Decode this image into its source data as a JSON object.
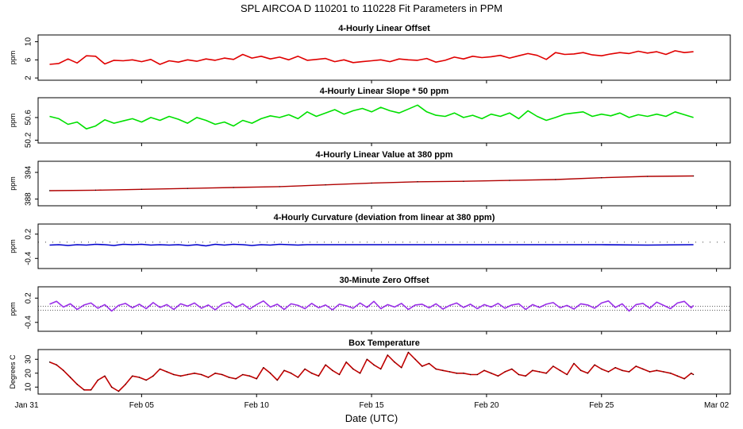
{
  "title": "SPL   AIRCOA D   110201 to 110228   Fit Parameters in PPM",
  "xlabel": "Date (UTC)",
  "x_axis": {
    "start_day": -0.5,
    "end_day": 29.6,
    "ticks": [
      {
        "label": "Jan 31",
        "day": -1
      },
      {
        "label": "Feb 05",
        "day": 4
      },
      {
        "label": "Feb 10",
        "day": 9
      },
      {
        "label": "Feb 15",
        "day": 14
      },
      {
        "label": "Feb 20",
        "day": 19
      },
      {
        "label": "Feb 25",
        "day": 24
      },
      {
        "label": "Mar 02",
        "day": 29
      }
    ]
  },
  "chart_data": [
    {
      "type": "line",
      "title": "4-Hourly Linear Offset",
      "ylabel": "ppm",
      "yticks": [
        "2",
        "6",
        "10"
      ],
      "ytick_values": [
        2,
        6,
        10
      ],
      "ylim": [
        1.5,
        11.5
      ],
      "color": "#e00000",
      "x": [
        0.0,
        0.4,
        0.8,
        1.2,
        1.6,
        2.0,
        2.4,
        2.8,
        3.2,
        3.6,
        4.0,
        4.4,
        4.8,
        5.2,
        5.6,
        6.0,
        6.4,
        6.8,
        7.2,
        7.6,
        8.0,
        8.4,
        8.8,
        9.2,
        9.6,
        10.0,
        10.4,
        10.8,
        11.2,
        11.6,
        12.0,
        12.4,
        12.8,
        13.2,
        13.6,
        14.0,
        14.4,
        14.8,
        15.2,
        15.6,
        16.0,
        16.4,
        16.8,
        17.2,
        17.6,
        18.0,
        18.4,
        18.8,
        19.2,
        19.6,
        20.0,
        20.4,
        20.8,
        21.2,
        21.6,
        22.0,
        22.4,
        22.8,
        23.2,
        23.6,
        24.0,
        24.4,
        24.8,
        25.2,
        25.6,
        26.0,
        26.4,
        26.8,
        27.2,
        27.6,
        28.0
      ],
      "y": [
        5.0,
        5.2,
        6.2,
        5.3,
        6.9,
        6.8,
        5.1,
        5.9,
        5.8,
        6.0,
        5.6,
        6.1,
        5.0,
        5.8,
        5.5,
        6.0,
        5.7,
        6.2,
        5.9,
        6.4,
        6.1,
        7.2,
        6.4,
        6.8,
        6.2,
        6.6,
        6.0,
        6.8,
        5.9,
        6.1,
        6.3,
        5.6,
        6.0,
        5.4,
        5.6,
        5.8,
        6.0,
        5.6,
        6.2,
        6.0,
        5.9,
        6.3,
        5.5,
        5.9,
        6.6,
        6.2,
        6.8,
        6.5,
        6.7,
        7.0,
        6.4,
        6.9,
        7.4,
        7.0,
        6.1,
        7.6,
        7.2,
        7.3,
        7.6,
        7.1,
        6.9,
        7.3,
        7.6,
        7.4,
        7.9,
        7.5,
        7.8,
        7.2,
        8.0,
        7.6,
        7.8
      ]
    },
    {
      "type": "line",
      "title": "4-Hourly Linear Slope * 50 ppm",
      "ylabel": "ppm",
      "yticks": [
        "50.2",
        "50.6"
      ],
      "ytick_values": [
        50.2,
        50.6
      ],
      "ylim": [
        50.15,
        50.95
      ],
      "color": "#00e000",
      "x": [
        0.0,
        0.4,
        0.8,
        1.2,
        1.6,
        2.0,
        2.4,
        2.8,
        3.2,
        3.6,
        4.0,
        4.4,
        4.8,
        5.2,
        5.6,
        6.0,
        6.4,
        6.8,
        7.2,
        7.6,
        8.0,
        8.4,
        8.8,
        9.2,
        9.6,
        10.0,
        10.4,
        10.8,
        11.2,
        11.6,
        12.0,
        12.4,
        12.8,
        13.2,
        13.6,
        14.0,
        14.4,
        14.8,
        15.2,
        15.6,
        16.0,
        16.4,
        16.8,
        17.2,
        17.6,
        18.0,
        18.4,
        18.8,
        19.2,
        19.6,
        20.0,
        20.4,
        20.8,
        21.2,
        21.6,
        22.0,
        22.4,
        22.8,
        23.2,
        23.6,
        24.0,
        24.4,
        24.8,
        25.2,
        25.6,
        26.0,
        26.4,
        26.8,
        27.2,
        27.6,
        28.0
      ],
      "y": [
        50.62,
        50.58,
        50.48,
        50.52,
        50.4,
        50.45,
        50.56,
        50.5,
        50.54,
        50.58,
        50.52,
        50.6,
        50.55,
        50.62,
        50.57,
        50.5,
        50.6,
        50.55,
        50.48,
        50.52,
        50.45,
        50.55,
        50.5,
        50.58,
        50.63,
        50.6,
        50.65,
        50.58,
        50.7,
        50.62,
        50.68,
        50.74,
        50.66,
        50.72,
        50.76,
        50.7,
        50.78,
        50.72,
        50.68,
        50.75,
        50.82,
        50.7,
        50.64,
        50.62,
        50.68,
        50.6,
        50.64,
        50.58,
        50.66,
        50.62,
        50.68,
        50.58,
        50.72,
        50.62,
        50.55,
        50.6,
        50.66,
        50.68,
        50.7,
        50.62,
        50.66,
        50.63,
        50.68,
        50.6,
        50.65,
        50.62,
        50.66,
        50.62,
        50.7,
        50.65,
        50.6
      ]
    },
    {
      "type": "line",
      "title": "4-Hourly Linear Value at 380 ppm",
      "ylabel": "ppm",
      "yticks": [
        "388",
        "394"
      ],
      "ytick_values": [
        388,
        394
      ],
      "ylim": [
        386.5,
        396.5
      ],
      "color": "#b00000",
      "x": [
        0.0,
        2.0,
        4.0,
        6.0,
        8.0,
        10.0,
        12.0,
        14.0,
        16.0,
        18.0,
        20.0,
        22.0,
        24.0,
        26.0,
        28.0
      ],
      "y": [
        389.9,
        390.0,
        390.2,
        390.4,
        390.6,
        390.8,
        391.2,
        391.6,
        391.9,
        392.0,
        392.2,
        392.4,
        392.8,
        393.1,
        393.2
      ]
    },
    {
      "type": "line",
      "title": "4-Hourly Curvature (deviation from linear at 380 ppm)",
      "ylabel": "ppm",
      "yticks": [
        "-0.4",
        "0.2"
      ],
      "ytick_values": [
        -0.4,
        0.2
      ],
      "ylim": [
        -0.65,
        0.45
      ],
      "color": "#0000cc",
      "x": [
        0.0,
        0.4,
        0.8,
        1.2,
        1.6,
        2.0,
        2.4,
        2.8,
        3.2,
        3.6,
        4.0,
        4.4,
        4.8,
        5.2,
        5.6,
        6.0,
        6.4,
        6.8,
        7.2,
        7.6,
        8.0,
        8.4,
        8.8,
        9.2,
        9.6,
        10.0,
        10.4,
        10.8,
        11.2,
        11.6,
        12.0,
        14.0,
        16.0,
        18.0,
        20.0,
        22.0,
        24.0,
        26.0,
        28.0
      ],
      "y": [
        -0.07,
        -0.06,
        -0.08,
        -0.06,
        -0.07,
        -0.05,
        -0.06,
        -0.08,
        -0.05,
        -0.06,
        -0.05,
        -0.07,
        -0.06,
        -0.07,
        -0.06,
        -0.08,
        -0.06,
        -0.09,
        -0.05,
        -0.07,
        -0.05,
        -0.06,
        -0.08,
        -0.06,
        -0.07,
        -0.05,
        -0.06,
        -0.07,
        -0.06,
        -0.06,
        -0.06,
        -0.06,
        -0.06,
        -0.06,
        -0.06,
        -0.06,
        -0.06,
        -0.07,
        -0.06
      ]
    },
    {
      "type": "line",
      "title": "30-Minute Zero Offset",
      "ylabel": "ppm",
      "yticks": [
        "-0.4",
        "0.2"
      ],
      "ytick_values": [
        -0.4,
        0.2
      ],
      "ylim": [
        -0.62,
        0.48
      ],
      "color": "#9a30e8",
      "x": [
        0.0,
        0.3,
        0.6,
        0.9,
        1.2,
        1.5,
        1.8,
        2.1,
        2.4,
        2.7,
        3.0,
        3.3,
        3.6,
        3.9,
        4.2,
        4.5,
        4.8,
        5.1,
        5.4,
        5.7,
        6.0,
        6.3,
        6.6,
        6.9,
        7.2,
        7.5,
        7.8,
        8.1,
        8.4,
        8.7,
        9.0,
        9.3,
        9.6,
        9.9,
        10.2,
        10.5,
        10.8,
        11.1,
        11.4,
        11.7,
        12.0,
        12.3,
        12.6,
        12.9,
        13.2,
        13.5,
        13.8,
        14.1,
        14.4,
        14.7,
        15.0,
        15.3,
        15.6,
        15.9,
        16.2,
        16.5,
        16.8,
        17.1,
        17.4,
        17.7,
        18.0,
        18.3,
        18.6,
        18.9,
        19.2,
        19.5,
        19.8,
        20.1,
        20.4,
        20.7,
        21.0,
        21.3,
        21.6,
        21.9,
        22.2,
        22.5,
        22.8,
        23.1,
        23.4,
        23.7,
        24.0,
        24.3,
        24.6,
        24.9,
        25.2,
        25.5,
        25.8,
        26.1,
        26.4,
        26.7,
        27.0,
        27.3,
        27.6,
        27.9,
        28.0
      ],
      "y": [
        0.05,
        0.12,
        -0.02,
        0.06,
        -0.08,
        0.03,
        0.08,
        -0.05,
        0.04,
        -0.12,
        0.02,
        0.07,
        -0.04,
        0.05,
        -0.06,
        0.09,
        -0.03,
        0.04,
        -0.08,
        0.06,
        0.0,
        0.08,
        -0.05,
        0.03,
        -0.09,
        0.05,
        0.1,
        -0.03,
        0.06,
        -0.07,
        0.04,
        0.13,
        -0.02,
        0.05,
        -0.08,
        0.06,
        0.02,
        -0.06,
        0.07,
        -0.04,
        0.03,
        -0.09,
        0.05,
        0.01,
        -0.05,
        0.08,
        -0.03,
        0.12,
        -0.06,
        0.04,
        -0.02,
        0.07,
        -0.08,
        0.03,
        0.05,
        -0.04,
        0.06,
        -0.07,
        0.02,
        0.08,
        -0.03,
        0.05,
        -0.06,
        0.04,
        -0.02,
        0.07,
        -0.05,
        0.03,
        0.06,
        -0.08,
        0.04,
        -0.03,
        0.05,
        0.09,
        -0.04,
        0.02,
        -0.07,
        0.06,
        0.03,
        -0.05,
        0.08,
        0.13,
        -0.03,
        0.06,
        -0.12,
        0.04,
        0.07,
        -0.05,
        0.1,
        0.02,
        -0.06,
        0.08,
        0.12,
        -0.04,
        0.02
      ]
    },
    {
      "type": "line",
      "title": "Box Temperature",
      "ylabel": "Degrees C",
      "yticks": [
        "10",
        "20",
        "30"
      ],
      "ytick_values": [
        10,
        20,
        30
      ],
      "ylim": [
        5,
        37
      ],
      "color": "#c00000",
      "x": [
        0.0,
        0.3,
        0.6,
        0.9,
        1.2,
        1.5,
        1.8,
        2.1,
        2.4,
        2.7,
        3.0,
        3.3,
        3.6,
        3.9,
        4.2,
        4.5,
        4.8,
        5.1,
        5.4,
        5.7,
        6.0,
        6.3,
        6.6,
        6.9,
        7.2,
        7.5,
        7.8,
        8.1,
        8.4,
        8.7,
        9.0,
        9.3,
        9.6,
        9.9,
        10.2,
        10.5,
        10.8,
        11.1,
        11.4,
        11.7,
        12.0,
        12.3,
        12.6,
        12.9,
        13.2,
        13.5,
        13.8,
        14.1,
        14.4,
        14.7,
        15.0,
        15.3,
        15.6,
        15.9,
        16.2,
        16.5,
        16.8,
        17.1,
        17.4,
        17.7,
        18.0,
        18.3,
        18.6,
        18.9,
        19.2,
        19.5,
        19.8,
        20.1,
        20.4,
        20.7,
        21.0,
        21.3,
        21.6,
        21.9,
        22.2,
        22.5,
        22.8,
        23.1,
        23.4,
        23.7,
        24.0,
        24.3,
        24.6,
        24.9,
        25.2,
        25.5,
        25.8,
        26.1,
        26.4,
        26.7,
        27.0,
        27.3,
        27.6,
        27.9,
        28.0
      ],
      "y": [
        28,
        26,
        22,
        17,
        12,
        8,
        8,
        15,
        18,
        10,
        7,
        12,
        18,
        17,
        15,
        18,
        23,
        21,
        19,
        18,
        19,
        20,
        19,
        17,
        20,
        19,
        17,
        16,
        19,
        18,
        16,
        24,
        20,
        15,
        22,
        20,
        17,
        23,
        20,
        18,
        26,
        22,
        19,
        28,
        23,
        20,
        30,
        26,
        23,
        33,
        28,
        24,
        35,
        30,
        25,
        27,
        23,
        22,
        21,
        20,
        20,
        19,
        19,
        22,
        20,
        18,
        21,
        23,
        19,
        18,
        22,
        21,
        20,
        25,
        22,
        19,
        27,
        22,
        20,
        26,
        23,
        21,
        24,
        22,
        21,
        25,
        23,
        21,
        22,
        21,
        20,
        18,
        16,
        20,
        19
      ]
    }
  ]
}
